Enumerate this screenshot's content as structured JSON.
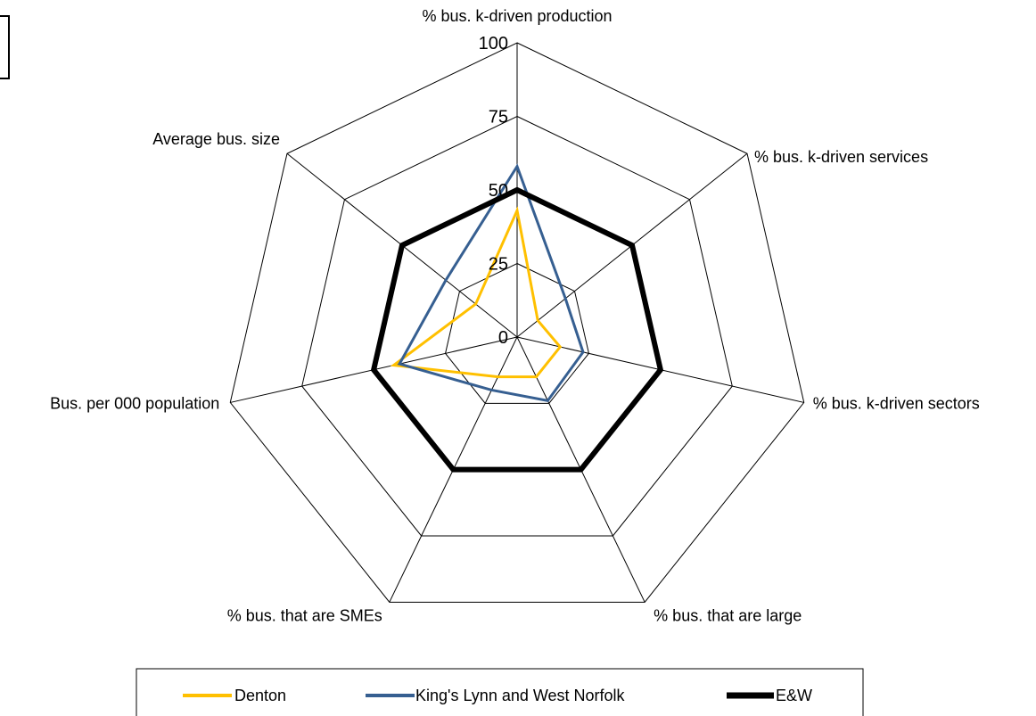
{
  "chart_data": {
    "type": "radar",
    "title": "",
    "axes": [
      "% bus. k-driven production",
      "% bus. k-driven services",
      "% bus. k-driven sectors",
      "% bus. that are large",
      "% bus. that are SMEs",
      "Bus. per 000 population",
      "Average bus. size"
    ],
    "ticks": [
      "0",
      "25",
      "50",
      "75",
      "100"
    ],
    "tick_values": [
      0,
      25,
      50,
      75,
      100
    ],
    "grid_values": [
      0,
      25,
      50,
      75,
      100
    ],
    "rmax": 100,
    "legend_position": "bottom",
    "series": [
      {
        "name": "Denton",
        "color": "#FFC000",
        "line_width": 3,
        "values": [
          43,
          9,
          15,
          15,
          15,
          43,
          18
        ]
      },
      {
        "name": "King's Lynn and West Norfolk",
        "color": "#365F91",
        "line_width": 3,
        "values": [
          58,
          21,
          23,
          24,
          20,
          41,
          31
        ]
      },
      {
        "name": "E&W",
        "color": "#000000",
        "line_width": 6,
        "values": [
          50,
          50,
          50,
          50,
          50,
          50,
          50
        ]
      }
    ]
  },
  "left_box_icon": "bordered-rectangle"
}
